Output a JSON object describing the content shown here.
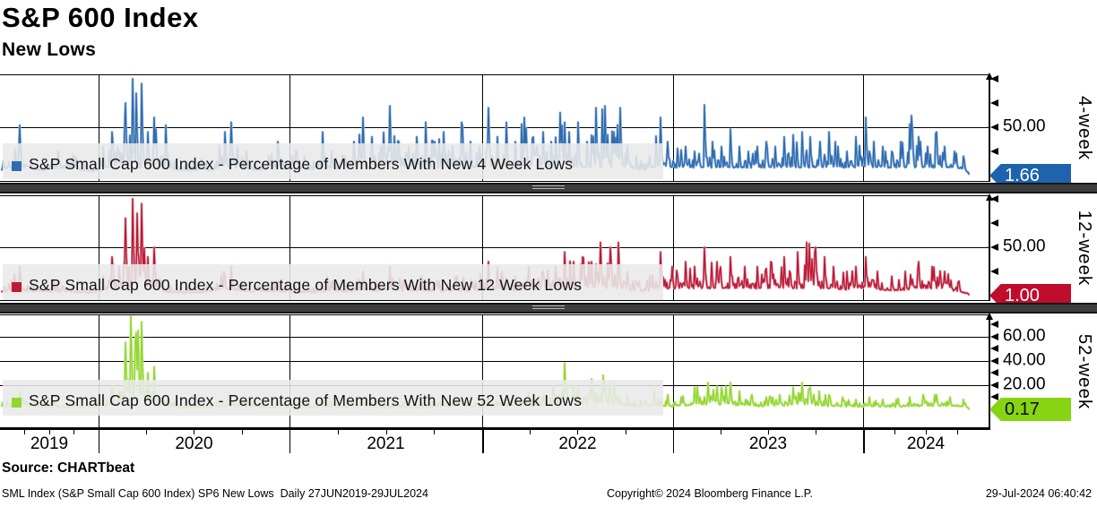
{
  "header": {
    "title": "S&P 600 Index",
    "subtitle": "New Lows"
  },
  "source": {
    "label": "Source: CHARTbeat"
  },
  "footer": {
    "left": "SML Index (S&P Small Cap 600 Index) SP6 New Lows  Daily 27JUN2019-29JUL2024",
    "center": "Copyright© 2024 Bloomberg Finance L.P.",
    "right": "29-Jul-2024 06:40:42"
  },
  "x_axis": {
    "range": "27JUN2019-29JUL2024",
    "years": [
      {
        "label": "2019",
        "start": 0.0,
        "end": 0.0997
      },
      {
        "label": "2020",
        "start": 0.0997,
        "end": 0.2928
      },
      {
        "label": "2021",
        "start": 0.2928,
        "end": 0.4878
      },
      {
        "label": "2022",
        "start": 0.4878,
        "end": 0.6808
      },
      {
        "label": "2023",
        "start": 0.6808,
        "end": 0.8731
      },
      {
        "label": "2024",
        "start": 0.8731,
        "end": 1.0
      }
    ]
  },
  "chart_data": [
    {
      "type": "line",
      "axis_label": "4-week",
      "legend": "S&P Small Cap 600 Index - Percentage of Members With New 4 Week Lows",
      "last_value": "1.66",
      "line_color": "#2e6cb0",
      "line_halo_color": "#9db9da",
      "badge_color": "#1e64ad",
      "badge_text_color": "#ffffff",
      "unit": "percent",
      "frequency": "daily",
      "ylim": [
        0,
        104
      ],
      "gridlines": [
        50
      ],
      "yticks": [
        {
          "v": 0
        },
        {
          "v": 25
        },
        {
          "v": 50,
          "label": "50.00"
        },
        {
          "v": 75
        },
        {
          "v": 100
        }
      ],
      "representation": "peak_envelope",
      "envelope": [
        [
          0,
          10
        ],
        [
          0.02,
          52
        ],
        [
          0.032,
          18
        ],
        [
          0.045,
          12
        ],
        [
          0.059,
          25
        ],
        [
          0.073,
          22
        ],
        [
          0.086,
          12
        ],
        [
          0.095,
          8
        ],
        [
          0.104,
          30
        ],
        [
          0.113,
          45
        ],
        [
          0.121,
          25
        ],
        [
          0.127,
          75
        ],
        [
          0.134,
          100
        ],
        [
          0.138,
          85
        ],
        [
          0.143,
          95
        ],
        [
          0.15,
          45
        ],
        [
          0.156,
          60
        ],
        [
          0.163,
          20
        ],
        [
          0.168,
          52
        ],
        [
          0.177,
          15
        ],
        [
          0.19,
          12
        ],
        [
          0.204,
          18
        ],
        [
          0.213,
          10
        ],
        [
          0.222,
          30
        ],
        [
          0.228,
          45
        ],
        [
          0.234,
          55
        ],
        [
          0.24,
          30
        ],
        [
          0.249,
          25
        ],
        [
          0.258,
          15
        ],
        [
          0.272,
          20
        ],
        [
          0.281,
          35
        ],
        [
          0.29,
          15
        ],
        [
          0.299,
          25
        ],
        [
          0.308,
          20
        ],
        [
          0.317,
          15
        ],
        [
          0.326,
          45
        ],
        [
          0.335,
          25
        ],
        [
          0.349,
          20
        ],
        [
          0.358,
          35
        ],
        [
          0.367,
          60
        ],
        [
          0.376,
          40
        ],
        [
          0.385,
          30
        ],
        [
          0.394,
          72
        ],
        [
          0.403,
          35
        ],
        [
          0.413,
          30
        ],
        [
          0.422,
          40
        ],
        [
          0.431,
          55
        ],
        [
          0.44,
          35
        ],
        [
          0.449,
          45
        ],
        [
          0.458,
          30
        ],
        [
          0.467,
          55
        ],
        [
          0.476,
          35
        ],
        [
          0.485,
          30
        ],
        [
          0.494,
          70
        ],
        [
          0.503,
          40
        ],
        [
          0.512,
          55
        ],
        [
          0.521,
          35
        ],
        [
          0.53,
          60
        ],
        [
          0.539,
          40
        ],
        [
          0.549,
          45
        ],
        [
          0.558,
          35
        ],
        [
          0.567,
          65
        ],
        [
          0.576,
          45
        ],
        [
          0.585,
          55
        ],
        [
          0.594,
          35
        ],
        [
          0.603,
          70
        ],
        [
          0.612,
          72
        ],
        [
          0.621,
          45
        ],
        [
          0.627,
          70
        ],
        [
          0.635,
          30
        ],
        [
          0.644,
          20
        ],
        [
          0.648,
          15
        ],
        [
          0.657,
          20
        ],
        [
          0.668,
          60
        ],
        [
          0.675,
          35
        ],
        [
          0.685,
          28
        ],
        [
          0.694,
          30
        ],
        [
          0.703,
          25
        ],
        [
          0.713,
          73
        ],
        [
          0.721,
          35
        ],
        [
          0.73,
          30
        ],
        [
          0.739,
          48
        ],
        [
          0.748,
          30
        ],
        [
          0.757,
          25
        ],
        [
          0.766,
          30
        ],
        [
          0.775,
          35
        ],
        [
          0.784,
          30
        ],
        [
          0.793,
          40
        ],
        [
          0.802,
          42
        ],
        [
          0.811,
          45
        ],
        [
          0.82,
          40
        ],
        [
          0.83,
          35
        ],
        [
          0.839,
          45
        ],
        [
          0.848,
          30
        ],
        [
          0.857,
          25
        ],
        [
          0.866,
          40
        ],
        [
          0.876,
          60
        ],
        [
          0.884,
          35
        ],
        [
          0.893,
          30
        ],
        [
          0.902,
          25
        ],
        [
          0.911,
          35
        ],
        [
          0.922,
          62
        ],
        [
          0.929,
          40
        ],
        [
          0.938,
          30
        ],
        [
          0.947,
          45
        ],
        [
          0.956,
          30
        ],
        [
          0.966,
          25
        ],
        [
          0.975,
          20
        ],
        [
          0.98,
          1.66
        ]
      ]
    },
    {
      "type": "line",
      "axis_label": "12-week",
      "legend": "S&P Small Cap 600 Index - Percentage of Members With New 12 Week Lows",
      "last_value": "1.00",
      "line_color": "#bd1a36",
      "line_halo_color": "#dda2ae",
      "badge_color": "#c00d2c",
      "badge_text_color": "#ffffff",
      "unit": "percent",
      "frequency": "daily",
      "ylim": [
        0,
        103
      ],
      "gridlines": [
        50
      ],
      "yticks": [
        {
          "v": 0
        },
        {
          "v": 25
        },
        {
          "v": 50,
          "label": "50.00"
        },
        {
          "v": 75
        },
        {
          "v": 100
        }
      ],
      "representation": "peak_envelope",
      "envelope": [
        [
          0,
          8
        ],
        [
          0.02,
          30
        ],
        [
          0.032,
          12
        ],
        [
          0.054,
          15
        ],
        [
          0.073,
          12
        ],
        [
          0.091,
          6
        ],
        [
          0.104,
          20
        ],
        [
          0.113,
          40
        ],
        [
          0.121,
          30
        ],
        [
          0.127,
          80
        ],
        [
          0.134,
          100
        ],
        [
          0.139,
          85
        ],
        [
          0.143,
          95
        ],
        [
          0.15,
          40
        ],
        [
          0.156,
          50
        ],
        [
          0.163,
          15
        ],
        [
          0.172,
          10
        ],
        [
          0.19,
          8
        ],
        [
          0.209,
          10
        ],
        [
          0.227,
          25
        ],
        [
          0.234,
          30
        ],
        [
          0.245,
          15
        ],
        [
          0.263,
          10
        ],
        [
          0.281,
          15
        ],
        [
          0.299,
          10
        ],
        [
          0.317,
          8
        ],
        [
          0.331,
          20
        ],
        [
          0.349,
          10
        ],
        [
          0.367,
          25
        ],
        [
          0.381,
          15
        ],
        [
          0.394,
          30
        ],
        [
          0.408,
          15
        ],
        [
          0.426,
          20
        ],
        [
          0.444,
          15
        ],
        [
          0.462,
          20
        ],
        [
          0.481,
          15
        ],
        [
          0.494,
          35
        ],
        [
          0.508,
          25
        ],
        [
          0.521,
          20
        ],
        [
          0.535,
          30
        ],
        [
          0.549,
          25
        ],
        [
          0.562,
          30
        ],
        [
          0.571,
          45
        ],
        [
          0.58,
          35
        ],
        [
          0.589,
          40
        ],
        [
          0.598,
          35
        ],
        [
          0.607,
          55
        ],
        [
          0.617,
          50
        ],
        [
          0.626,
          55
        ],
        [
          0.635,
          25
        ],
        [
          0.646,
          15
        ],
        [
          0.657,
          20
        ],
        [
          0.668,
          45
        ],
        [
          0.68,
          30
        ],
        [
          0.694,
          35
        ],
        [
          0.703,
          30
        ],
        [
          0.713,
          50
        ],
        [
          0.725,
          35
        ],
        [
          0.739,
          40
        ],
        [
          0.753,
          30
        ],
        [
          0.766,
          30
        ],
        [
          0.78,
          35
        ],
        [
          0.793,
          40
        ],
        [
          0.807,
          45
        ],
        [
          0.816,
          55
        ],
        [
          0.825,
          50
        ],
        [
          0.834,
          40
        ],
        [
          0.843,
          30
        ],
        [
          0.857,
          25
        ],
        [
          0.866,
          30
        ],
        [
          0.876,
          40
        ],
        [
          0.888,
          25
        ],
        [
          0.902,
          20
        ],
        [
          0.916,
          25
        ],
        [
          0.929,
          35
        ],
        [
          0.943,
          30
        ],
        [
          0.956,
          25
        ],
        [
          0.97,
          15
        ],
        [
          0.98,
          1.0
        ]
      ]
    },
    {
      "type": "line",
      "axis_label": "52-week",
      "legend": "S&P Small Cap 600 Index - Percentage of Members With New 52 Week Lows",
      "last_value": "0.17",
      "line_color": "#93d630",
      "line_halo_color": "#cdeb9e",
      "badge_color": "#86d412",
      "badge_text_color": "#0b0b0b",
      "unit": "percent",
      "frequency": "daily",
      "ylim": [
        0,
        78
      ],
      "gridlines": [
        20,
        40,
        60
      ],
      "yticks": [
        {
          "v": 0
        },
        {
          "v": 10
        },
        {
          "v": 20,
          "label": "20.00"
        },
        {
          "v": 30
        },
        {
          "v": 40,
          "label": "40.00"
        },
        {
          "v": 50
        },
        {
          "v": 60,
          "label": "60.00"
        },
        {
          "v": 70
        }
      ],
      "representation": "peak_envelope",
      "envelope": [
        [
          0,
          5
        ],
        [
          0.02,
          15
        ],
        [
          0.036,
          8
        ],
        [
          0.054,
          6
        ],
        [
          0.073,
          5
        ],
        [
          0.091,
          4
        ],
        [
          0.104,
          8
        ],
        [
          0.113,
          20
        ],
        [
          0.121,
          15
        ],
        [
          0.127,
          55
        ],
        [
          0.132,
          77
        ],
        [
          0.138,
          63
        ],
        [
          0.143,
          72
        ],
        [
          0.15,
          30
        ],
        [
          0.156,
          35
        ],
        [
          0.163,
          10
        ],
        [
          0.177,
          6
        ],
        [
          0.195,
          5
        ],
        [
          0.213,
          4
        ],
        [
          0.231,
          12
        ],
        [
          0.245,
          6
        ],
        [
          0.263,
          5
        ],
        [
          0.281,
          6
        ],
        [
          0.299,
          5
        ],
        [
          0.317,
          4
        ],
        [
          0.335,
          6
        ],
        [
          0.354,
          5
        ],
        [
          0.372,
          8
        ],
        [
          0.39,
          5
        ],
        [
          0.408,
          6
        ],
        [
          0.426,
          5
        ],
        [
          0.444,
          6
        ],
        [
          0.462,
          8
        ],
        [
          0.481,
          6
        ],
        [
          0.494,
          12
        ],
        [
          0.508,
          8
        ],
        [
          0.521,
          10
        ],
        [
          0.535,
          14
        ],
        [
          0.549,
          12
        ],
        [
          0.559,
          20
        ],
        [
          0.571,
          38
        ],
        [
          0.585,
          18
        ],
        [
          0.598,
          25
        ],
        [
          0.61,
          28
        ],
        [
          0.621,
          22
        ],
        [
          0.635,
          12
        ],
        [
          0.648,
          8
        ],
        [
          0.662,
          15
        ],
        [
          0.675,
          12
        ],
        [
          0.689,
          10
        ],
        [
          0.703,
          18
        ],
        [
          0.716,
          22
        ],
        [
          0.73,
          18
        ],
        [
          0.739,
          22
        ],
        [
          0.748,
          15
        ],
        [
          0.761,
          12
        ],
        [
          0.775,
          10
        ],
        [
          0.789,
          12
        ],
        [
          0.802,
          18
        ],
        [
          0.811,
          22
        ],
        [
          0.82,
          18
        ],
        [
          0.829,
          15
        ],
        [
          0.839,
          12
        ],
        [
          0.852,
          10
        ],
        [
          0.866,
          8
        ],
        [
          0.879,
          10
        ],
        [
          0.893,
          8
        ],
        [
          0.907,
          8
        ],
        [
          0.92,
          10
        ],
        [
          0.934,
          12
        ],
        [
          0.947,
          12
        ],
        [
          0.961,
          10
        ],
        [
          0.975,
          8
        ],
        [
          0.98,
          0.17
        ]
      ]
    }
  ]
}
